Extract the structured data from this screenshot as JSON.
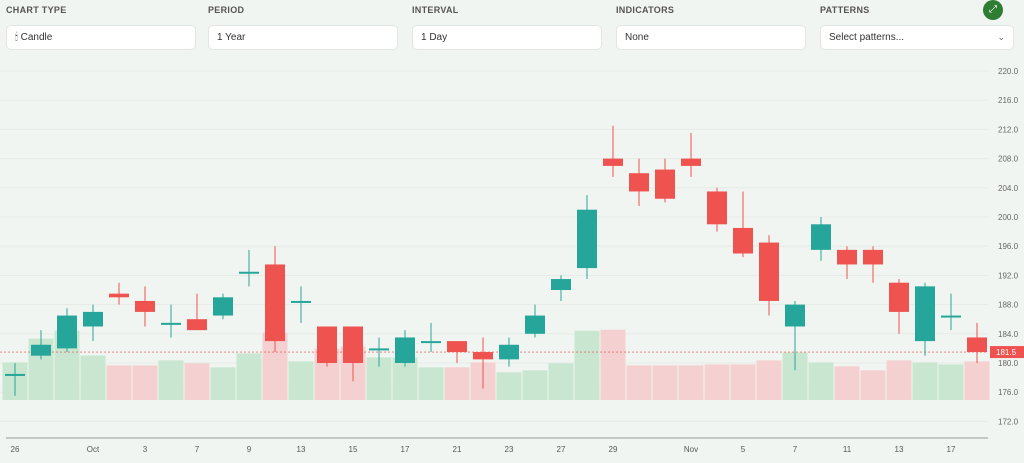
{
  "controls": {
    "chart_type": {
      "label": "CHART TYPE",
      "value": "Candle",
      "icon": "candle-icon"
    },
    "period": {
      "label": "PERIOD",
      "value": "1 Year"
    },
    "interval": {
      "label": "INTERVAL",
      "value": "1 Day"
    },
    "indicators": {
      "label": "INDICATORS",
      "value": "None"
    },
    "patterns": {
      "label": "PATTERNS",
      "placeholder": "Select patterns..."
    },
    "expand_icon": "expand-icon"
  },
  "colors": {
    "up": "#26a69a",
    "down": "#ef5350",
    "vol_up": "#c8e6d0",
    "vol_down": "#f5d0d0",
    "accent": "#2e7d32"
  },
  "chart_data": {
    "type": "candlestick",
    "title": "",
    "ylim": [
      170,
      222
    ],
    "yticks": [
      "220.0",
      "216.0",
      "212.0",
      "208.0",
      "204.0",
      "200.0",
      "196.0",
      "192.0",
      "188.0",
      "184.0",
      "180.0",
      "176.0",
      "172.0"
    ],
    "xticks": [
      {
        "label": "26",
        "i": 0
      },
      {
        "label": "Oct",
        "i": 3
      },
      {
        "label": "3",
        "i": 5
      },
      {
        "label": "7",
        "i": 7
      },
      {
        "label": "9",
        "i": 9
      },
      {
        "label": "13",
        "i": 11
      },
      {
        "label": "15",
        "i": 13
      },
      {
        "label": "17",
        "i": 15
      },
      {
        "label": "21",
        "i": 17
      },
      {
        "label": "23",
        "i": 19
      },
      {
        "label": "27",
        "i": 21
      },
      {
        "label": "29",
        "i": 23
      },
      {
        "label": "Nov",
        "i": 26
      },
      {
        "label": "5",
        "i": 28
      },
      {
        "label": "7",
        "i": 30
      },
      {
        "label": "11",
        "i": 32
      },
      {
        "label": "13",
        "i": 34
      },
      {
        "label": "17",
        "i": 36
      }
    ],
    "last_price": "181.5",
    "candles": [
      {
        "o": 178.5,
        "h": 180.0,
        "l": 175.5,
        "c": 178.5,
        "v": 0.38
      },
      {
        "o": 181.0,
        "h": 184.5,
        "l": 180.5,
        "c": 182.5,
        "v": 0.62
      },
      {
        "o": 182.0,
        "h": 187.5,
        "l": 181.5,
        "c": 186.5,
        "v": 0.7
      },
      {
        "o": 185.0,
        "h": 188.0,
        "l": 183.0,
        "c": 187.0,
        "v": 0.45
      },
      {
        "o": 189.5,
        "h": 191.0,
        "l": 188.0,
        "c": 189.0,
        "v": 0.35
      },
      {
        "o": 188.5,
        "h": 190.5,
        "l": 185.0,
        "c": 187.0,
        "v": 0.35
      },
      {
        "o": 185.5,
        "h": 188.0,
        "l": 183.5,
        "c": 185.5,
        "v": 0.4
      },
      {
        "o": 186.0,
        "h": 189.5,
        "l": 184.5,
        "c": 184.5,
        "v": 0.37
      },
      {
        "o": 186.5,
        "h": 189.5,
        "l": 186.0,
        "c": 189.0,
        "v": 0.33
      },
      {
        "o": 192.5,
        "h": 195.5,
        "l": 190.5,
        "c": 192.5,
        "v": 0.47
      },
      {
        "o": 193.5,
        "h": 196.0,
        "l": 181.5,
        "c": 183.0,
        "v": 0.68
      },
      {
        "o": 188.5,
        "h": 190.5,
        "l": 185.5,
        "c": 188.5,
        "v": 0.39
      },
      {
        "o": 185.0,
        "h": 185.0,
        "l": 179.5,
        "c": 180.0,
        "v": 0.52
      },
      {
        "o": 185.0,
        "h": 185.0,
        "l": 177.5,
        "c": 180.0,
        "v": 0.54
      },
      {
        "o": 182.0,
        "h": 183.5,
        "l": 179.5,
        "c": 182.0,
        "v": 0.43
      },
      {
        "o": 180.0,
        "h": 184.5,
        "l": 179.5,
        "c": 183.5,
        "v": 0.43
      },
      {
        "o": 183.0,
        "h": 185.5,
        "l": 181.5,
        "c": 183.0,
        "v": 0.33
      },
      {
        "o": 183.0,
        "h": 183.0,
        "l": 180.0,
        "c": 181.5,
        "v": 0.33
      },
      {
        "o": 181.5,
        "h": 183.5,
        "l": 176.5,
        "c": 180.5,
        "v": 0.38
      },
      {
        "o": 180.5,
        "h": 183.5,
        "l": 179.5,
        "c": 182.5,
        "v": 0.28
      },
      {
        "o": 184.0,
        "h": 188.0,
        "l": 183.5,
        "c": 186.5,
        "v": 0.3
      },
      {
        "o": 190.0,
        "h": 192.0,
        "l": 188.5,
        "c": 191.5,
        "v": 0.37
      },
      {
        "o": 193.0,
        "h": 203.0,
        "l": 191.5,
        "c": 201.0,
        "v": 0.7
      },
      {
        "o": 208.0,
        "h": 212.5,
        "l": 205.5,
        "c": 207.0,
        "v": 0.71
      },
      {
        "o": 206.0,
        "h": 208.0,
        "l": 201.5,
        "c": 203.5,
        "v": 0.35
      },
      {
        "o": 206.5,
        "h": 208.0,
        "l": 202.0,
        "c": 202.5,
        "v": 0.35
      },
      {
        "o": 208.0,
        "h": 211.5,
        "l": 205.5,
        "c": 207.0,
        "v": 0.35
      },
      {
        "o": 203.5,
        "h": 204.0,
        "l": 198.0,
        "c": 199.0,
        "v": 0.36
      },
      {
        "o": 198.5,
        "h": 203.5,
        "l": 194.5,
        "c": 195.0,
        "v": 0.36
      },
      {
        "o": 196.5,
        "h": 197.5,
        "l": 186.5,
        "c": 188.5,
        "v": 0.4
      },
      {
        "o": 185.0,
        "h": 188.5,
        "l": 179.0,
        "c": 188.0,
        "v": 0.48
      },
      {
        "o": 195.5,
        "h": 200.0,
        "l": 194.0,
        "c": 199.0,
        "v": 0.38
      },
      {
        "o": 195.5,
        "h": 196.0,
        "l": 191.5,
        "c": 193.5,
        "v": 0.34
      },
      {
        "o": 195.5,
        "h": 196.0,
        "l": 191.0,
        "c": 193.5,
        "v": 0.3
      },
      {
        "o": 191.0,
        "h": 191.5,
        "l": 184.0,
        "c": 187.0,
        "v": 0.4
      },
      {
        "o": 183.0,
        "h": 191.0,
        "l": 181.0,
        "c": 190.5,
        "v": 0.38
      },
      {
        "o": 186.5,
        "h": 189.5,
        "l": 184.5,
        "c": 186.5,
        "v": 0.36
      },
      {
        "o": 183.5,
        "h": 185.5,
        "l": 180.0,
        "c": 181.5,
        "v": 0.39
      }
    ]
  }
}
